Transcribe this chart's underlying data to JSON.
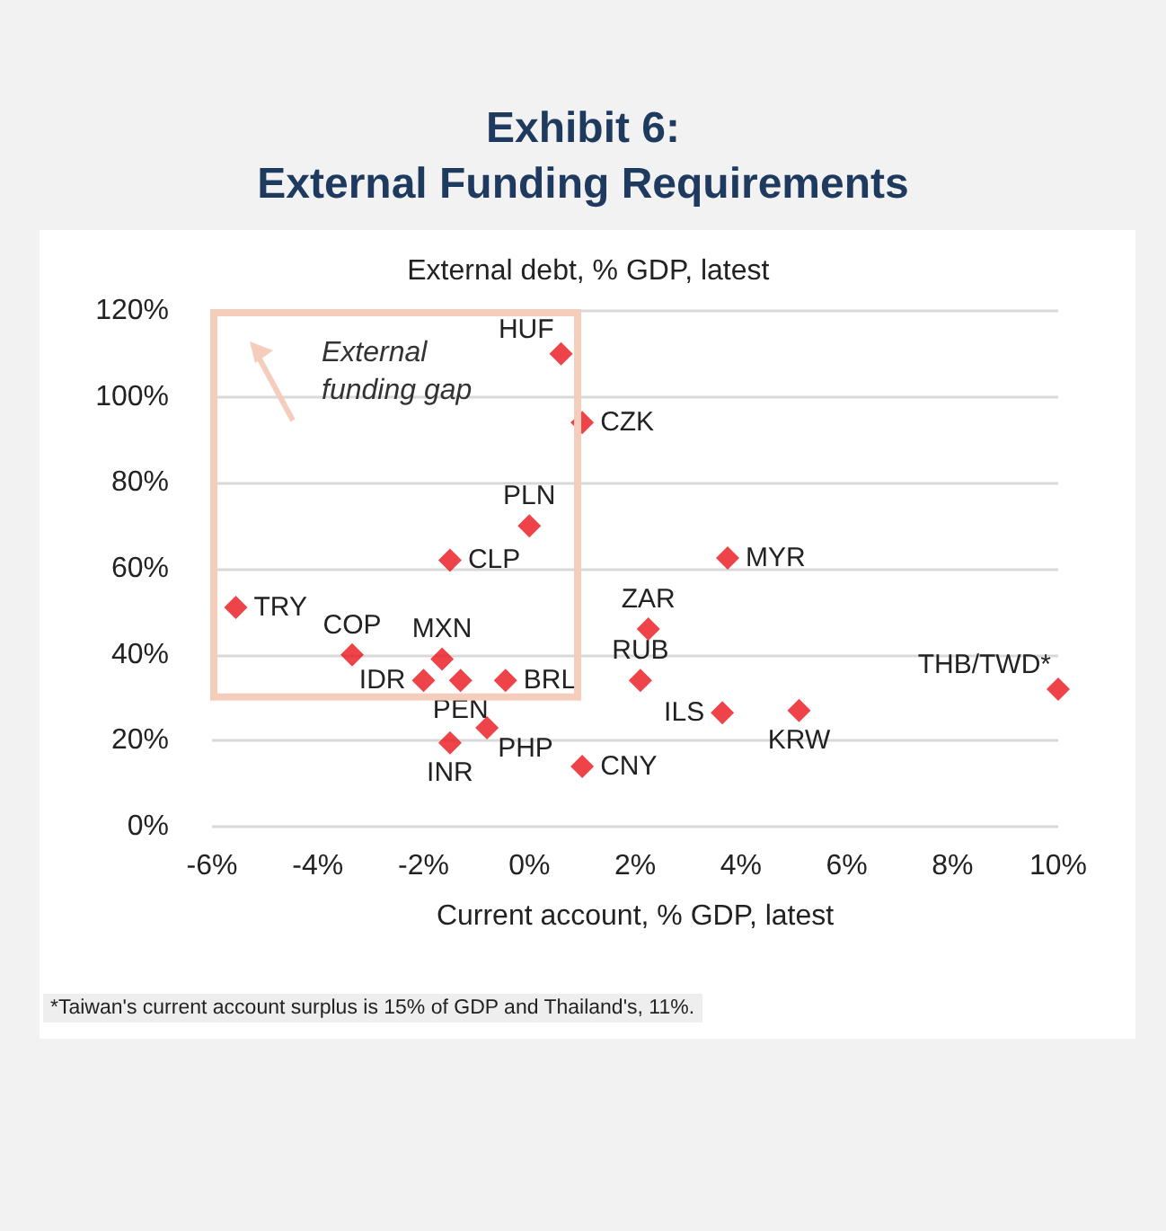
{
  "chart_data": {
    "type": "scatter",
    "title": "Exhibit 6:",
    "subtitle": "External Funding Requirements",
    "xlabel": "Current account, % GDP, latest",
    "ylabel": "External debt, % GDP, latest",
    "x": [
      0.6,
      1.0,
      0.0,
      -1.5,
      -5.55,
      -3.35,
      -1.65,
      -2.0,
      -1.3,
      -0.45,
      -1.5,
      -0.8,
      1.0,
      2.25,
      2.1,
      3.75,
      3.65,
      5.1,
      10.0
    ],
    "values": [
      110,
      94,
      70,
      62,
      51,
      40,
      39,
      34,
      34,
      34,
      19.5,
      23,
      14,
      46,
      34,
      62.5,
      26.5,
      27,
      32
    ],
    "color": "#e8141b",
    "marker": "diamond",
    "grid": "y",
    "xlim": [
      -6,
      10
    ],
    "xticks": [
      {
        "value": -6,
        "label": "-6%"
      },
      {
        "value": -4,
        "label": "-4%"
      },
      {
        "value": -2,
        "label": "-2%"
      },
      {
        "value": 0,
        "label": "0%"
      },
      {
        "value": 2,
        "label": "2%"
      },
      {
        "value": 4,
        "label": "4%"
      },
      {
        "value": 6,
        "label": "6%"
      },
      {
        "value": 8,
        "label": "8%"
      },
      {
        "value": 10,
        "label": "10%"
      }
    ],
    "ylim": [
      0,
      120
    ],
    "yticks": [
      {
        "value": 0,
        "label": "0%"
      },
      {
        "value": 20,
        "label": "20%"
      },
      {
        "value": 40,
        "label": "40%"
      },
      {
        "value": 60,
        "label": "60%"
      },
      {
        "value": 80,
        "label": "80%"
      },
      {
        "value": 100,
        "label": "100%"
      },
      {
        "value": 120,
        "label": "120%"
      }
    ],
    "annotations": [
      {
        "text": "HUF",
        "x": 0.6,
        "y": 110
      },
      {
        "text": "CZK",
        "x": 1.0,
        "y": 94
      },
      {
        "text": "PLN",
        "x": 0.0,
        "y": 70
      },
      {
        "text": "CLP",
        "x": -1.5,
        "y": 62
      },
      {
        "text": "TRY",
        "x": -5.55,
        "y": 51
      },
      {
        "text": "COP",
        "x": -3.35,
        "y": 40
      },
      {
        "text": "MXN",
        "x": -1.65,
        "y": 39
      },
      {
        "text": "IDR",
        "x": -2.0,
        "y": 34
      },
      {
        "text": "PEN",
        "x": -1.3,
        "y": 34
      },
      {
        "text": "BRL",
        "x": -0.45,
        "y": 34
      },
      {
        "text": "INR",
        "x": -1.5,
        "y": 19.5
      },
      {
        "text": "PHP",
        "x": -0.8,
        "y": 23
      },
      {
        "text": "CNY",
        "x": 1.0,
        "y": 14
      },
      {
        "text": "ZAR",
        "x": 2.25,
        "y": 46
      },
      {
        "text": "RUB",
        "x": 2.1,
        "y": 34
      },
      {
        "text": "MYR",
        "x": 3.75,
        "y": 62.5
      },
      {
        "text": "ILS",
        "x": 3.65,
        "y": 26.5
      },
      {
        "text": "KRW",
        "x": 5.1,
        "y": 27
      },
      {
        "text": "THB/TWD*",
        "x": 10.0,
        "y": 32
      },
      "External funding gap",
      "*Taiwan's current account surplus is 15% of GDP and Thailand's, 11%."
    ]
  }
}
